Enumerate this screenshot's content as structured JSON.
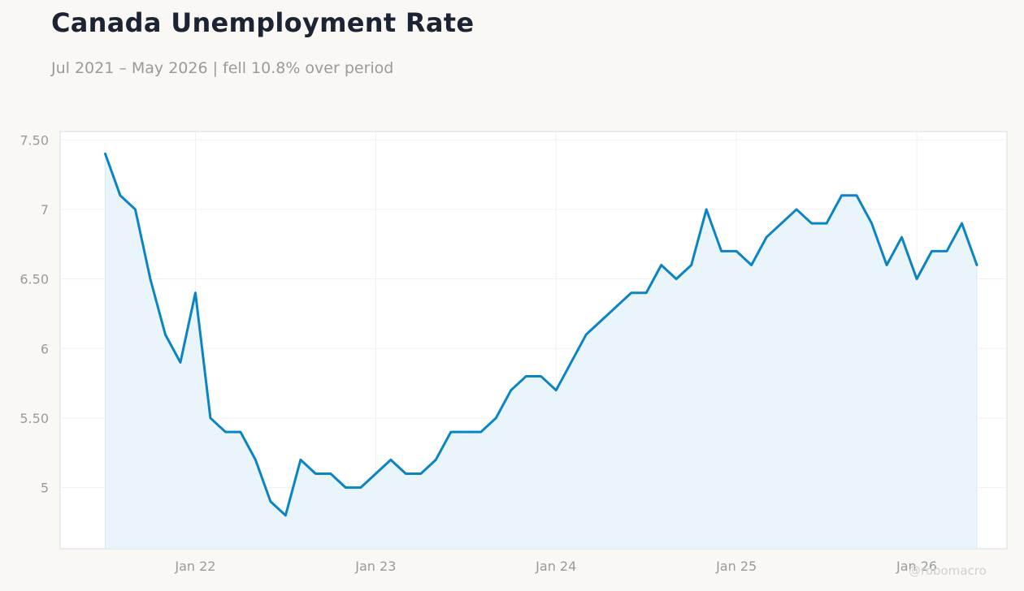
{
  "header": {
    "title": "Canada Unemployment Rate",
    "subtitle": "Jul 2021 – May 2026 | fell 10.8% over period"
  },
  "watermark": "@robomacro",
  "colors": {
    "line": "#0a84c4",
    "area_fill": "#e8f3fb",
    "grid": "#f0f0f0",
    "axis_text": "#9a9a9a",
    "plot_border": "#dcdcdc"
  },
  "chart_data": {
    "type": "area",
    "title": "Canada Unemployment Rate",
    "subtitle": "Jul 2021 – May 2026 | fell 10.8% over period",
    "xlabel": "",
    "ylabel": "",
    "ylim": [
      4.56,
      7.56
    ],
    "y_ticks": [
      5,
      5.5,
      6,
      6.5,
      7,
      7.5
    ],
    "y_tick_labels": [
      "5",
      "5.50",
      "6",
      "6.50",
      "7",
      "7.50"
    ],
    "x_ticks": [
      "2022-01",
      "2023-01",
      "2024-01",
      "2025-01",
      "2026-01"
    ],
    "x_tick_labels": [
      "Jan 22",
      "Jan 23",
      "Jan 24",
      "Jan 25",
      "Jan 26"
    ],
    "x_range": [
      "2021-04",
      "2026-07"
    ],
    "grid": true,
    "legend": "none",
    "series": [
      {
        "x": [
          "2021-07",
          "2021-08",
          "2021-09",
          "2021-10",
          "2021-11",
          "2021-12",
          "2022-01",
          "2022-02",
          "2022-03",
          "2022-04",
          "2022-05",
          "2022-06",
          "2022-07",
          "2022-08",
          "2022-09",
          "2022-10",
          "2022-11",
          "2022-12",
          "2023-01",
          "2023-02",
          "2023-03",
          "2023-04",
          "2023-05",
          "2023-06",
          "2023-07",
          "2023-08",
          "2023-09",
          "2023-10",
          "2023-11",
          "2023-12",
          "2024-01",
          "2024-02",
          "2024-03",
          "2024-04",
          "2024-05",
          "2024-06",
          "2024-07",
          "2024-08",
          "2024-09",
          "2024-10",
          "2024-11",
          "2024-12",
          "2025-01",
          "2025-02",
          "2025-03",
          "2025-04",
          "2025-05",
          "2025-06",
          "2025-07",
          "2025-08",
          "2025-09",
          "2025-10",
          "2025-11",
          "2025-12",
          "2026-01",
          "2026-02",
          "2026-03",
          "2026-04",
          "2026-05"
        ],
        "values": [
          7.4,
          7.1,
          7.0,
          6.5,
          6.1,
          5.9,
          6.4,
          5.5,
          5.4,
          5.4,
          5.2,
          4.9,
          4.8,
          5.2,
          5.1,
          5.1,
          5.0,
          5.0,
          5.1,
          5.2,
          5.1,
          5.1,
          5.2,
          5.4,
          5.4,
          5.4,
          5.5,
          5.7,
          5.8,
          5.8,
          5.7,
          5.9,
          6.1,
          6.2,
          6.3,
          6.4,
          6.4,
          6.6,
          6.5,
          6.6,
          7.0,
          6.7,
          6.7,
          6.6,
          6.8,
          6.9,
          7.0,
          6.9,
          6.9,
          7.1,
          7.1,
          6.9,
          6.6,
          6.8,
          6.5,
          6.7,
          6.7,
          6.9,
          6.6
        ]
      }
    ]
  }
}
